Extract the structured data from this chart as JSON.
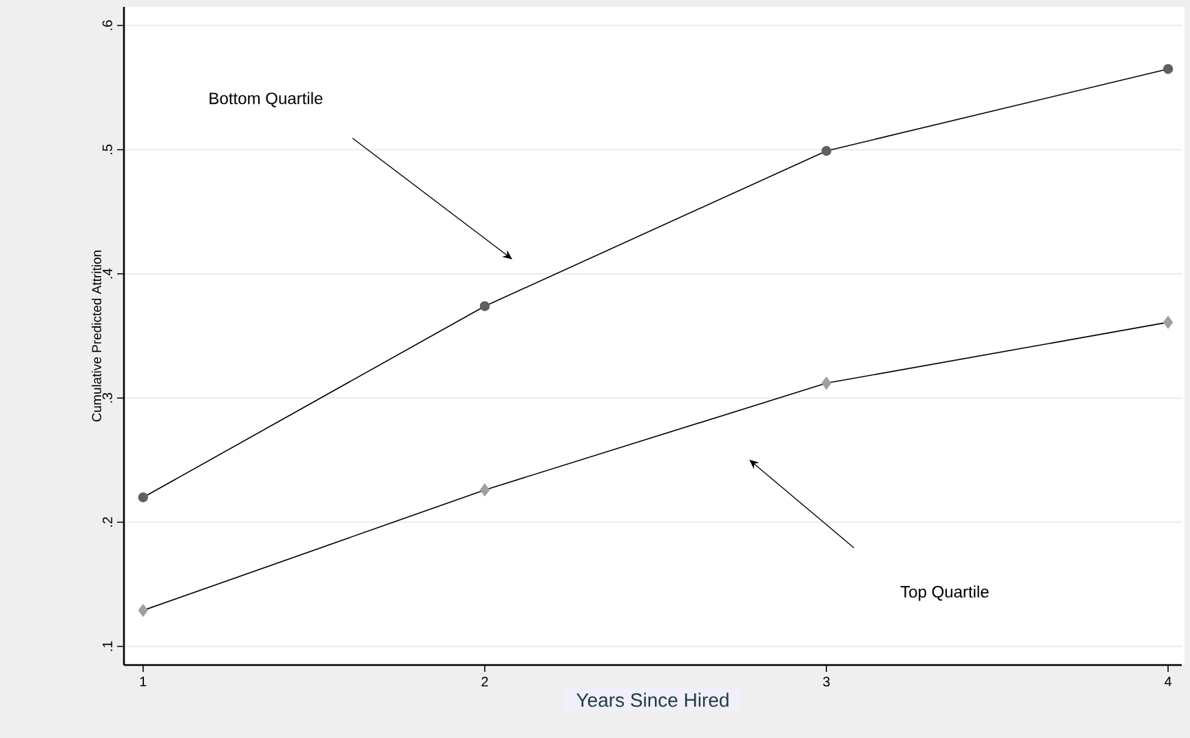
{
  "chart_data": {
    "type": "line",
    "xlabel": "Years Since Hired",
    "ylabel": "Cumulative Predicted Attrition",
    "x": [
      1,
      2,
      3,
      4
    ],
    "series": [
      {
        "color": "#606060",
        "marker": "circle",
        "values": [
          0.22,
          0.374,
          0.499,
          0.565
        ]
      },
      {
        "color": "#a0a0a0",
        "marker": "diamond",
        "values": [
          0.129,
          0.226,
          0.312,
          0.361
        ]
      }
    ],
    "annotations": [
      "Bottom Quartile",
      "Top Quartile"
    ],
    "xlim": [
      0.944,
      4.04
    ],
    "ylim": [
      0.085,
      0.615
    ],
    "xticks": [
      1,
      2,
      3,
      4
    ],
    "yticks": [
      {
        "value": 0.1,
        "label": ".1"
      },
      {
        "value": 0.2,
        "label": ".2"
      },
      {
        "value": 0.3,
        "label": ".3"
      },
      {
        "value": 0.4,
        "label": ".4"
      },
      {
        "value": 0.5,
        "label": ".5"
      },
      {
        "value": 0.6,
        "label": ".6"
      }
    ],
    "grid": "y",
    "line_style": "solid"
  }
}
